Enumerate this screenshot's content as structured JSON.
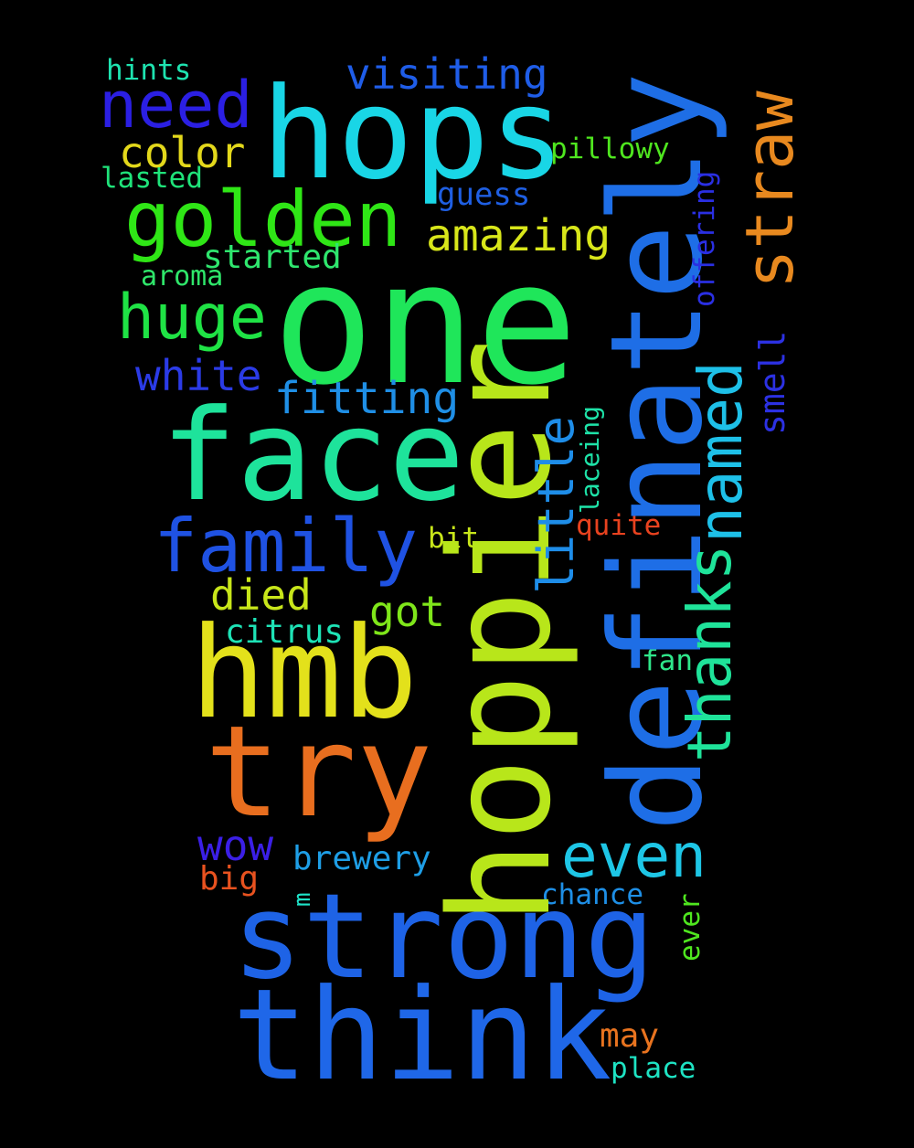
{
  "background": "#000000",
  "words": {
    "one": {
      "text": "one",
      "color": "#1fe65a"
    },
    "hops": {
      "text": "hops",
      "color": "#19d6e6"
    },
    "face": {
      "text": "face",
      "color": "#1ee39b"
    },
    "hmb": {
      "text": "hmb",
      "color": "#e3e11b"
    },
    "try": {
      "text": "try",
      "color": "#e86e1f"
    },
    "strong": {
      "text": "strong",
      "color": "#1e63e6"
    },
    "think": {
      "text": "think",
      "color": "#1f67e8"
    },
    "hoppier": {
      "text": "hoppier",
      "color": "#b8e61a"
    },
    "definately": {
      "text": "definately",
      "color": "#1e6ee6"
    },
    "golden": {
      "text": "golden",
      "color": "#2fe616"
    },
    "need": {
      "text": "need",
      "color": "#2b1fe3"
    },
    "family": {
      "text": "family",
      "color": "#1f52e3"
    },
    "huge": {
      "text": "huge",
      "color": "#1fe345"
    },
    "straw": {
      "text": "straw",
      "color": "#e8891f"
    },
    "thanks": {
      "text": "thanks",
      "color": "#1fe39a"
    },
    "named": {
      "text": "named",
      "color": "#1ec0e8"
    },
    "even": {
      "text": "even",
      "color": "#1ec6e6"
    },
    "visiting": {
      "text": "visiting",
      "color": "#1f5de8"
    },
    "amazing": {
      "text": "amazing",
      "color": "#d8e61a"
    },
    "color": {
      "text": "color",
      "color": "#e3d81b"
    },
    "fitting": {
      "text": "fitting",
      "color": "#1f8fe6"
    },
    "little": {
      "text": "little",
      "color": "#1e8de8"
    },
    "white": {
      "text": "white",
      "color": "#2b3be6"
    },
    "died": {
      "text": "died",
      "color": "#c8e61a"
    },
    "got": {
      "text": "got",
      "color": "#7fe61a"
    },
    "wow": {
      "text": "wow",
      "color": "#3b1fe6"
    },
    "smell": {
      "text": "smell",
      "color": "#2c31e3"
    },
    "offering": {
      "text": "offering",
      "color": "#2a2fe3"
    },
    "started": {
      "text": "started",
      "color": "#2fe66e"
    },
    "citrus": {
      "text": "citrus",
      "color": "#1ee3b6"
    },
    "brewery": {
      "text": "brewery",
      "color": "#1e9ee6"
    },
    "guess": {
      "text": "guess",
      "color": "#1f5fe3"
    },
    "pillowy": {
      "text": "pillowy",
      "color": "#4fe61f"
    },
    "hints": {
      "text": "hints",
      "color": "#1ee3b0"
    },
    "lasted": {
      "text": "lasted",
      "color": "#1fe37a"
    },
    "aroma": {
      "text": "aroma",
      "color": "#2fe66a"
    },
    "lacing": {
      "text": "laceing",
      "color": "#1ee3a8"
    },
    "quite": {
      "text": "quite",
      "color": "#e8421f"
    },
    "bit": {
      "text": "bit",
      "color": "#c8e61a"
    },
    "fan": {
      "text": "fan",
      "color": "#2fe68a"
    },
    "big": {
      "text": "big",
      "color": "#e8521f"
    },
    "m": {
      "text": "m",
      "color": "#1ee3c8"
    },
    "chance": {
      "text": "chance",
      "color": "#1e8fe6"
    },
    "ever": {
      "text": "ever",
      "color": "#4fe61f"
    },
    "may": {
      "text": "may",
      "color": "#e8731f"
    },
    "place": {
      "text": "place",
      "color": "#1ee3c3"
    }
  }
}
